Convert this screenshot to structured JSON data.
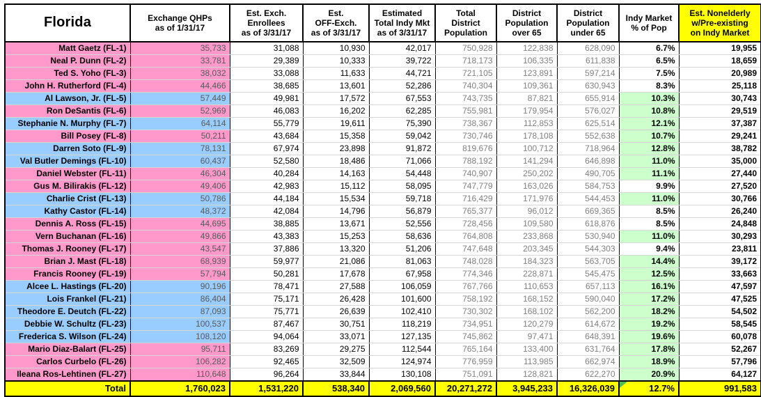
{
  "title": "Florida congressional districts — individual market enrollment table",
  "colors": {
    "republican_row": "#ff99cc",
    "democrat_row": "#99ccff",
    "pct_highlight": "#ccffcc",
    "total_and_last_col": "#ffff00",
    "population_text": "#808080",
    "qhp_text": "#595959"
  },
  "chart_data": {
    "type": "table",
    "columns": [
      "Florida",
      "Exchange QHPs\nas of 1/31/17",
      "Est. Exch.\nEnrollees\nas of 3/31/17",
      "Est.\nOFF-Exch.\nas of 3/31/17",
      "Estimated\nTotal Indy Mkt\nas of 3/31/17",
      "Total\nDistrict\nPopulation",
      "District\nPopulation\nover 65",
      "District\nPopulation\nunder 65",
      "Indy Market\n% of Pop",
      "Est. Nonelderly\nw/Pre-existing\non Indy Market"
    ],
    "rows": [
      {
        "member": "Matt Gaetz (FL-1)",
        "party": "R",
        "exchange_qhps": "35,733",
        "est_exch_enrollees": "31,088",
        "est_off_exch": "10,930",
        "est_total_indy_mkt": "42,017",
        "total_district_population": "750,928",
        "district_population_over_65": "122,838",
        "district_population_under_65": "628,090",
        "indy_market_pct_of_pop": "6.7%",
        "pct_highlight": false,
        "est_nonelderly_preexisting": "19,955"
      },
      {
        "member": "Neal P. Dunn (FL-2)",
        "party": "R",
        "exchange_qhps": "33,781",
        "est_exch_enrollees": "29,389",
        "est_off_exch": "10,333",
        "est_total_indy_mkt": "39,722",
        "total_district_population": "718,173",
        "district_population_over_65": "106,335",
        "district_population_under_65": "611,838",
        "indy_market_pct_of_pop": "6.5%",
        "pct_highlight": false,
        "est_nonelderly_preexisting": "18,659"
      },
      {
        "member": "Ted S. Yoho (FL-3)",
        "party": "R",
        "exchange_qhps": "38,032",
        "est_exch_enrollees": "33,088",
        "est_off_exch": "11,633",
        "est_total_indy_mkt": "44,721",
        "total_district_population": "721,105",
        "district_population_over_65": "123,891",
        "district_population_under_65": "597,214",
        "indy_market_pct_of_pop": "7.5%",
        "pct_highlight": false,
        "est_nonelderly_preexisting": "20,989"
      },
      {
        "member": "John H. Rutherford (FL-4)",
        "party": "R",
        "exchange_qhps": "44,466",
        "est_exch_enrollees": "38,685",
        "est_off_exch": "13,601",
        "est_total_indy_mkt": "52,286",
        "total_district_population": "740,304",
        "district_population_over_65": "109,361",
        "district_population_under_65": "630,943",
        "indy_market_pct_of_pop": "8.3%",
        "pct_highlight": false,
        "est_nonelderly_preexisting": "25,118"
      },
      {
        "member": "Al Lawson, Jr. (FL-5)",
        "party": "D",
        "exchange_qhps": "57,449",
        "est_exch_enrollees": "49,981",
        "est_off_exch": "17,572",
        "est_total_indy_mkt": "67,553",
        "total_district_population": "743,735",
        "district_population_over_65": "87,821",
        "district_population_under_65": "655,914",
        "indy_market_pct_of_pop": "10.3%",
        "pct_highlight": true,
        "est_nonelderly_preexisting": "30,743"
      },
      {
        "member": "Ron DeSantis (FL-6)",
        "party": "R",
        "exchange_qhps": "52,969",
        "est_exch_enrollees": "46,083",
        "est_off_exch": "16,202",
        "est_total_indy_mkt": "62,285",
        "total_district_population": "755,981",
        "district_population_over_65": "179,954",
        "district_population_under_65": "576,027",
        "indy_market_pct_of_pop": "10.8%",
        "pct_highlight": true,
        "est_nonelderly_preexisting": "29,519"
      },
      {
        "member": "Stephanie N. Murphy (FL-7)",
        "party": "D",
        "exchange_qhps": "64,114",
        "est_exch_enrollees": "55,779",
        "est_off_exch": "19,611",
        "est_total_indy_mkt": "75,390",
        "total_district_population": "738,367",
        "district_population_over_65": "112,853",
        "district_population_under_65": "625,514",
        "indy_market_pct_of_pop": "12.1%",
        "pct_highlight": true,
        "est_nonelderly_preexisting": "37,387"
      },
      {
        "member": "Bill Posey (FL-8)",
        "party": "R",
        "exchange_qhps": "50,211",
        "est_exch_enrollees": "43,684",
        "est_off_exch": "15,358",
        "est_total_indy_mkt": "59,042",
        "total_district_population": "730,746",
        "district_population_over_65": "178,108",
        "district_population_under_65": "552,638",
        "indy_market_pct_of_pop": "10.7%",
        "pct_highlight": true,
        "est_nonelderly_preexisting": "29,241"
      },
      {
        "member": "Darren Soto (FL-9)",
        "party": "D",
        "exchange_qhps": "78,131",
        "est_exch_enrollees": "67,974",
        "est_off_exch": "23,898",
        "est_total_indy_mkt": "91,872",
        "total_district_population": "819,676",
        "district_population_over_65": "100,712",
        "district_population_under_65": "718,964",
        "indy_market_pct_of_pop": "12.8%",
        "pct_highlight": true,
        "est_nonelderly_preexisting": "38,782"
      },
      {
        "member": "Val Butler Demings (FL-10)",
        "party": "D",
        "exchange_qhps": "60,437",
        "est_exch_enrollees": "52,580",
        "est_off_exch": "18,486",
        "est_total_indy_mkt": "71,066",
        "total_district_population": "788,192",
        "district_population_over_65": "141,294",
        "district_population_under_65": "646,898",
        "indy_market_pct_of_pop": "11.0%",
        "pct_highlight": true,
        "est_nonelderly_preexisting": "35,000"
      },
      {
        "member": "Daniel Webster (FL-11)",
        "party": "R",
        "exchange_qhps": "46,304",
        "est_exch_enrollees": "40,284",
        "est_off_exch": "14,163",
        "est_total_indy_mkt": "54,448",
        "total_district_population": "740,907",
        "district_population_over_65": "250,202",
        "district_population_under_65": "490,705",
        "indy_market_pct_of_pop": "11.1%",
        "pct_highlight": true,
        "est_nonelderly_preexisting": "27,440"
      },
      {
        "member": "Gus M. Bilirakis (FL-12)",
        "party": "R",
        "exchange_qhps": "49,406",
        "est_exch_enrollees": "42,983",
        "est_off_exch": "15,112",
        "est_total_indy_mkt": "58,095",
        "total_district_population": "747,779",
        "district_population_over_65": "163,026",
        "district_population_under_65": "584,753",
        "indy_market_pct_of_pop": "9.9%",
        "pct_highlight": false,
        "est_nonelderly_preexisting": "27,520"
      },
      {
        "member": "Charlie Crist (FL-13)",
        "party": "D",
        "exchange_qhps": "50,786",
        "est_exch_enrollees": "44,184",
        "est_off_exch": "15,534",
        "est_total_indy_mkt": "59,718",
        "total_district_population": "716,429",
        "district_population_over_65": "171,976",
        "district_population_under_65": "544,453",
        "indy_market_pct_of_pop": "11.0%",
        "pct_highlight": true,
        "est_nonelderly_preexisting": "30,766"
      },
      {
        "member": "Kathy Castor (FL-14)",
        "party": "D",
        "exchange_qhps": "48,372",
        "est_exch_enrollees": "42,084",
        "est_off_exch": "14,796",
        "est_total_indy_mkt": "56,879",
        "total_district_population": "765,377",
        "district_population_over_65": "96,012",
        "district_population_under_65": "669,365",
        "indy_market_pct_of_pop": "8.5%",
        "pct_highlight": false,
        "est_nonelderly_preexisting": "26,240"
      },
      {
        "member": "Dennis A. Ross (FL-15)",
        "party": "R",
        "exchange_qhps": "44,695",
        "est_exch_enrollees": "38,885",
        "est_off_exch": "13,671",
        "est_total_indy_mkt": "52,556",
        "total_district_population": "728,456",
        "district_population_over_65": "109,580",
        "district_population_under_65": "618,876",
        "indy_market_pct_of_pop": "8.5%",
        "pct_highlight": false,
        "est_nonelderly_preexisting": "24,848"
      },
      {
        "member": "Vern Buchanan (FL-16)",
        "party": "R",
        "exchange_qhps": "49,866",
        "est_exch_enrollees": "43,383",
        "est_off_exch": "15,253",
        "est_total_indy_mkt": "58,636",
        "total_district_population": "764,808",
        "district_population_over_65": "233,868",
        "district_population_under_65": "530,940",
        "indy_market_pct_of_pop": "11.0%",
        "pct_highlight": true,
        "est_nonelderly_preexisting": "30,293"
      },
      {
        "member": "Thomas J. Rooney (FL-17)",
        "party": "R",
        "exchange_qhps": "43,547",
        "est_exch_enrollees": "37,886",
        "est_off_exch": "13,320",
        "est_total_indy_mkt": "51,206",
        "total_district_population": "747,648",
        "district_population_over_65": "203,345",
        "district_population_under_65": "544,303",
        "indy_market_pct_of_pop": "9.4%",
        "pct_highlight": false,
        "est_nonelderly_preexisting": "23,811"
      },
      {
        "member": "Brian J. Mast (FL-18)",
        "party": "R",
        "exchange_qhps": "68,939",
        "est_exch_enrollees": "59,977",
        "est_off_exch": "21,086",
        "est_total_indy_mkt": "81,063",
        "total_district_population": "748,028",
        "district_population_over_65": "184,323",
        "district_population_under_65": "563,705",
        "indy_market_pct_of_pop": "14.4%",
        "pct_highlight": true,
        "est_nonelderly_preexisting": "39,172"
      },
      {
        "member": "Francis Rooney (FL-19)",
        "party": "R",
        "exchange_qhps": "57,794",
        "est_exch_enrollees": "50,281",
        "est_off_exch": "17,678",
        "est_total_indy_mkt": "67,958",
        "total_district_population": "774,346",
        "district_population_over_65": "228,871",
        "district_population_under_65": "545,475",
        "indy_market_pct_of_pop": "12.5%",
        "pct_highlight": true,
        "est_nonelderly_preexisting": "33,663"
      },
      {
        "member": "Alcee L. Hastings (FL-20)",
        "party": "D",
        "exchange_qhps": "90,196",
        "est_exch_enrollees": "78,471",
        "est_off_exch": "27,588",
        "est_total_indy_mkt": "106,059",
        "total_district_population": "767,766",
        "district_population_over_65": "110,653",
        "district_population_under_65": "657,113",
        "indy_market_pct_of_pop": "16.1%",
        "pct_highlight": true,
        "est_nonelderly_preexisting": "47,597"
      },
      {
        "member": "Lois Frankel (FL-21)",
        "party": "D",
        "exchange_qhps": "86,404",
        "est_exch_enrollees": "75,171",
        "est_off_exch": "26,428",
        "est_total_indy_mkt": "101,600",
        "total_district_population": "758,192",
        "district_population_over_65": "168,152",
        "district_population_under_65": "590,040",
        "indy_market_pct_of_pop": "17.2%",
        "pct_highlight": true,
        "est_nonelderly_preexisting": "47,525"
      },
      {
        "member": "Theodore E. Deutch (FL-22)",
        "party": "D",
        "exchange_qhps": "87,093",
        "est_exch_enrollees": "75,771",
        "est_off_exch": "26,639",
        "est_total_indy_mkt": "102,410",
        "total_district_population": "730,302",
        "district_population_over_65": "168,102",
        "district_population_under_65": "562,200",
        "indy_market_pct_of_pop": "18.2%",
        "pct_highlight": true,
        "est_nonelderly_preexisting": "54,502"
      },
      {
        "member": "Debbie W. Schultz (FL-23)",
        "party": "D",
        "exchange_qhps": "100,537",
        "est_exch_enrollees": "87,467",
        "est_off_exch": "30,751",
        "est_total_indy_mkt": "118,219",
        "total_district_population": "734,951",
        "district_population_over_65": "120,279",
        "district_population_under_65": "614,672",
        "indy_market_pct_of_pop": "19.2%",
        "pct_highlight": true,
        "est_nonelderly_preexisting": "58,545"
      },
      {
        "member": "Frederica S. Wilson (FL-24)",
        "party": "D",
        "exchange_qhps": "108,120",
        "est_exch_enrollees": "94,064",
        "est_off_exch": "33,071",
        "est_total_indy_mkt": "127,135",
        "total_district_population": "745,862",
        "district_population_over_65": "97,471",
        "district_population_under_65": "648,391",
        "indy_market_pct_of_pop": "19.6%",
        "pct_highlight": true,
        "est_nonelderly_preexisting": "60,078"
      },
      {
        "member": "Mario Diaz-Balart (FL-25)",
        "party": "R",
        "exchange_qhps": "95,711",
        "est_exch_enrollees": "83,269",
        "est_off_exch": "29,275",
        "est_total_indy_mkt": "112,544",
        "total_district_population": "765,164",
        "district_population_over_65": "133,400",
        "district_population_under_65": "631,764",
        "indy_market_pct_of_pop": "17.8%",
        "pct_highlight": true,
        "est_nonelderly_preexisting": "52,267"
      },
      {
        "member": "Carlos Curbelo (FL-26)",
        "party": "R",
        "exchange_qhps": "106,282",
        "est_exch_enrollees": "92,465",
        "est_off_exch": "32,509",
        "est_total_indy_mkt": "124,974",
        "total_district_population": "776,959",
        "district_population_over_65": "113,985",
        "district_population_under_65": "662,974",
        "indy_market_pct_of_pop": "18.9%",
        "pct_highlight": true,
        "est_nonelderly_preexisting": "57,796"
      },
      {
        "member": "Ileana Ros-Lehtinen (FL-27)",
        "party": "R",
        "exchange_qhps": "110,648",
        "est_exch_enrollees": "96,264",
        "est_off_exch": "33,844",
        "est_total_indy_mkt": "130,108",
        "total_district_population": "751,091",
        "district_population_over_65": "128,821",
        "district_population_under_65": "622,270",
        "indy_market_pct_of_pop": "20.9%",
        "pct_highlight": true,
        "est_nonelderly_preexisting": "64,127"
      }
    ],
    "total_row": {
      "label": "Total",
      "exchange_qhps": "1,760,023",
      "est_exch_enrollees": "1,531,220",
      "est_off_exch": "538,340",
      "est_total_indy_mkt": "2,069,560",
      "total_district_population": "20,271,272",
      "district_population_over_65": "3,945,233",
      "district_population_under_65": "16,326,039",
      "indy_market_pct_of_pop": "12.7%",
      "est_nonelderly_preexisting": "991,583"
    }
  }
}
